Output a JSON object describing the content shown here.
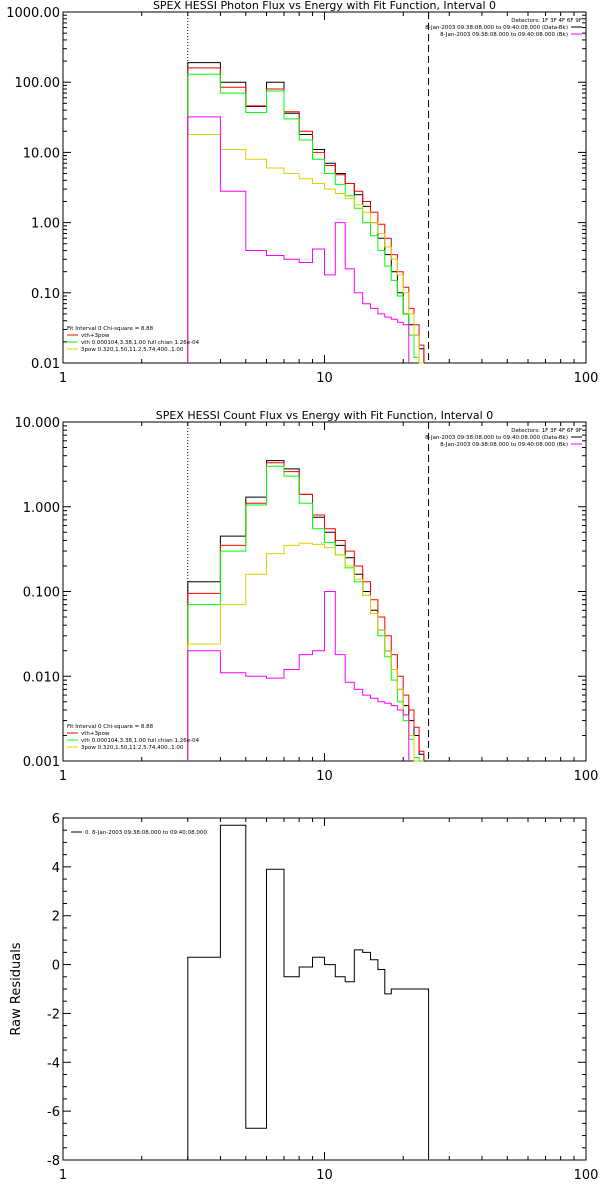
{
  "chart_data": [
    {
      "type": "line",
      "title": "SPEX HESSI Photon Flux vs Energy with Fit Function, Interval 0",
      "xscale": "log",
      "yscale": "log",
      "xlim": [
        1,
        100
      ],
      "ylim": [
        0.01,
        1000
      ],
      "xticks": [
        1,
        10,
        100
      ],
      "xtick_labels": [
        "1",
        "10",
        "100"
      ],
      "yticks": [
        0.01,
        0.1,
        1,
        10,
        100,
        1000
      ],
      "ytick_labels": [
        "0.01",
        "0.10",
        "1.00",
        "10.00",
        "100.00",
        "1000.00"
      ],
      "vlines": [
        {
          "x": 3.0,
          "style": "dotted"
        },
        {
          "x": 25,
          "style": "dashed"
        }
      ],
      "legend_top_right": [
        {
          "text": "Detectors: 1F 3F 4F 6F 9F"
        },
        {
          "text": "8-Jan-2003 09:38:08.000 to 09:40:08.000 (Data-Bk)",
          "color": "#000000"
        },
        {
          "text": "8-Jan-2003 09:38:08.000 to 09:40:08.000 (Bk)",
          "color": "#ff00ff"
        }
      ],
      "legend_bottom_left": [
        {
          "text": "Fit Interval 0   Chi-square = 8.88"
        },
        {
          "text": "vth+3pow",
          "color": "#ff0000"
        },
        {
          "text": "vth 0.000104,3.38,1.00  full chian 1.26e-04",
          "color": "#00ff00"
        },
        {
          "text": "3pow 0.320,1.50,11.2,5.74,400.,1.00",
          "color": "#e0d000"
        }
      ],
      "bin_edges": [
        3,
        4,
        5,
        6,
        7,
        8,
        9,
        10,
        11,
        12,
        13,
        14,
        15,
        16,
        17,
        18,
        19,
        20,
        21,
        22,
        23,
        24,
        25,
        26,
        27,
        28
      ],
      "series": [
        {
          "color": "#000000",
          "values": [
            190,
            100,
            45,
            100,
            36,
            18,
            11,
            7,
            5,
            3.6,
            2.5,
            1.7,
            1.0,
            0.6,
            0.35,
            0.2,
            0.1,
            0.05,
            0.035,
            0.025,
            0.016
          ]
        },
        {
          "color": "#ff0000",
          "values": [
            160,
            85,
            46,
            80,
            38,
            20,
            10,
            6.5,
            4.8,
            3.6,
            2.8,
            2.0,
            1.4,
            0.95,
            0.6,
            0.35,
            0.2,
            0.12,
            0.06,
            0.035,
            0.018
          ]
        },
        {
          "color": "#00ff00",
          "values": [
            130,
            70,
            37,
            75,
            30,
            15,
            8,
            5,
            3.5,
            2.4,
            1.6,
            1.0,
            0.65,
            0.4,
            0.24,
            0.15,
            0.09,
            0.05,
            0.025,
            0.012,
            0.01
          ]
        },
        {
          "color": "#e0d000",
          "values": [
            18,
            11,
            8,
            6,
            5,
            4.2,
            3.6,
            3,
            2.6,
            2.2,
            1.8,
            1.4,
            1.0,
            0.7,
            0.45,
            0.3,
            0.18,
            0.1,
            0.05,
            0.025,
            0.01
          ]
        },
        {
          "color": "#ff00ff",
          "values": [
            32,
            2.8,
            0.4,
            0.34,
            0.3,
            0.27,
            0.42,
            0.18,
            1.0,
            0.22,
            0.1,
            0.07,
            0.06,
            0.05,
            0.045,
            0.042,
            0.038,
            0.035
          ]
        }
      ]
    },
    {
      "type": "line",
      "title": "SPEX HESSI Count Flux vs Energy with Fit Function, Interval 0",
      "xscale": "log",
      "yscale": "log",
      "xlim": [
        1,
        100
      ],
      "ylim": [
        0.001,
        10
      ],
      "xticks": [
        1,
        10,
        100
      ],
      "xtick_labels": [
        "1",
        "10",
        "100"
      ],
      "yticks": [
        0.001,
        0.01,
        0.1,
        1,
        10
      ],
      "ytick_labels": [
        "0.001",
        "0.010",
        "0.100",
        "1.000",
        "10.000"
      ],
      "vlines": [
        {
          "x": 3.0,
          "style": "dotted"
        },
        {
          "x": 25,
          "style": "dashed"
        }
      ],
      "legend_top_right": [
        {
          "text": "Detectors: 1F 3F 4F 6F 9F"
        },
        {
          "text": "8-Jan-2003 09:38:08.000 to 09:40:08.000 (Data-Bk)",
          "color": "#000000"
        },
        {
          "text": "8-Jan-2003 09:38:08.000 to 09:40:08.000 (Bk)",
          "color": "#ff00ff"
        }
      ],
      "legend_bottom_left": [
        {
          "text": "Fit Interval 0   Chi-square = 8.88"
        },
        {
          "text": "vth+3pow",
          "color": "#ff0000"
        },
        {
          "text": "vth 0.000104,3.38,1.00  full chian 1.26e-04",
          "color": "#00ff00"
        },
        {
          "text": "3pow 0.320,1.50,11.2,5.74,400.,1.00",
          "color": "#e0d000"
        }
      ],
      "bin_edges": [
        3,
        4,
        5,
        6,
        7,
        8,
        9,
        10,
        11,
        12,
        13,
        14,
        15,
        16,
        17,
        18,
        19,
        20,
        21,
        22,
        23,
        24,
        25,
        26,
        27,
        28
      ],
      "series": [
        {
          "color": "#000000",
          "values": [
            0.13,
            0.45,
            1.3,
            3.5,
            2.8,
            1.4,
            0.75,
            0.5,
            0.35,
            0.25,
            0.16,
            0.1,
            0.06,
            0.035,
            0.02,
            0.012,
            0.007,
            0.0045,
            0.003,
            0.002,
            0.0012
          ]
        },
        {
          "color": "#ff0000",
          "values": [
            0.095,
            0.35,
            1.1,
            3.3,
            2.6,
            1.4,
            0.8,
            0.55,
            0.4,
            0.3,
            0.2,
            0.13,
            0.08,
            0.05,
            0.03,
            0.018,
            0.01,
            0.006,
            0.004,
            0.0025,
            0.0013
          ]
        },
        {
          "color": "#00ff00",
          "values": [
            0.07,
            0.3,
            1.05,
            3.0,
            2.3,
            1.1,
            0.55,
            0.38,
            0.27,
            0.19,
            0.13,
            0.09,
            0.055,
            0.03,
            0.017,
            0.009,
            0.005,
            0.003,
            0.0018,
            0.0011,
            0.001
          ]
        },
        {
          "color": "#e0d000",
          "values": [
            0.024,
            0.07,
            0.16,
            0.28,
            0.35,
            0.37,
            0.36,
            0.33,
            0.27,
            0.2,
            0.14,
            0.09,
            0.055,
            0.035,
            0.02,
            0.012,
            0.007,
            0.0035,
            0.002,
            0.001
          ]
        },
        {
          "color": "#ff00ff",
          "values": [
            0.02,
            0.011,
            0.01,
            0.0095,
            0.012,
            0.018,
            0.02,
            0.1,
            0.018,
            0.0085,
            0.007,
            0.006,
            0.0055,
            0.005,
            0.0048,
            0.0045,
            0.004,
            0.0035
          ]
        }
      ]
    },
    {
      "type": "line",
      "title": "",
      "ylabel": "Raw Residuals",
      "xscale": "log",
      "yscale": "linear",
      "xlim": [
        1,
        100
      ],
      "ylim": [
        -8,
        6
      ],
      "xticks": [
        1,
        10,
        100
      ],
      "xtick_labels": [
        "1",
        "10",
        "100"
      ],
      "yticks": [
        -8,
        -6,
        -4,
        -2,
        0,
        2,
        4,
        6
      ],
      "ytick_labels": [
        "-8",
        "-6",
        "-4",
        "-2",
        "0",
        "2",
        "4",
        "6"
      ],
      "legend_top_left": [
        {
          "text": "0. 8-Jan-2003 09:38:08.000 to 09:40:08.000",
          "color": "#000000"
        }
      ],
      "bin_edges": [
        3,
        4,
        5,
        6,
        7,
        8,
        9,
        10,
        11,
        12,
        13,
        14,
        15,
        16,
        17,
        18,
        19,
        20,
        21,
        22,
        23,
        24,
        25
      ],
      "series": [
        {
          "color": "#000000",
          "values": [
            0.3,
            5.7,
            -6.7,
            3.9,
            -0.5,
            -0.1,
            0.3,
            0.0,
            -0.5,
            -0.7,
            0.6,
            0.5,
            0.2,
            -0.2,
            -1.2,
            -1.0,
            -1.0,
            -1.0,
            -1.0,
            -1.0,
            -1.0,
            -1.0
          ]
        }
      ]
    }
  ]
}
